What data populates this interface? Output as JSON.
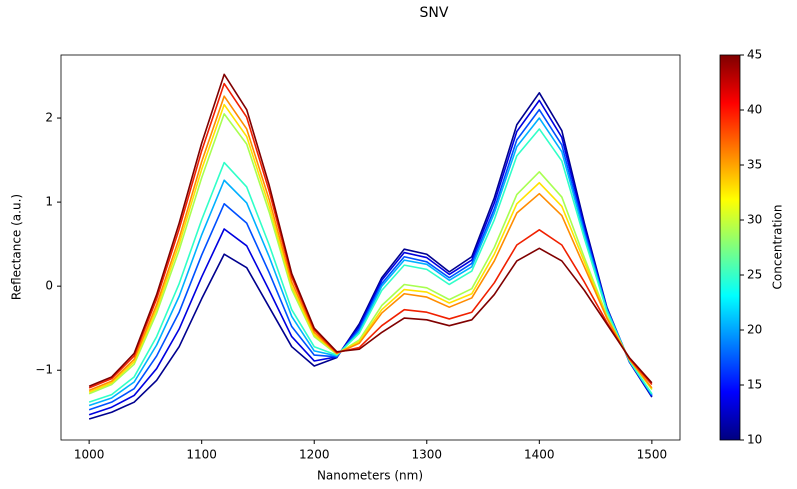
{
  "chart_data": {
    "type": "line",
    "title": "SNV",
    "x_label": "Nanometers (nm)",
    "y_label": "Reflectance (a.u.)",
    "x": [
      1000,
      1020,
      1040,
      1060,
      1080,
      1100,
      1120,
      1140,
      1160,
      1180,
      1200,
      1220,
      1240,
      1260,
      1280,
      1300,
      1320,
      1340,
      1360,
      1380,
      1400,
      1420,
      1440,
      1460,
      1480,
      1500
    ],
    "xlim": [
      975,
      1525
    ],
    "xticks": [
      1000,
      1100,
      1200,
      1300,
      1400,
      1500
    ],
    "ylim": [
      -1.83,
      2.75
    ],
    "yticks": [
      {
        "value": -1,
        "label": "−1"
      },
      0,
      1,
      2
    ],
    "grid": false,
    "series": [
      {
        "color": "#00008f",
        "values": [
          -1.58,
          -1.5,
          -1.38,
          -1.12,
          -0.72,
          -0.15,
          0.38,
          0.22,
          -0.25,
          -0.72,
          -0.95,
          -0.85,
          -0.45,
          0.1,
          0.44,
          0.38,
          0.17,
          0.35,
          1.05,
          1.92,
          2.3,
          1.85,
          0.75,
          -0.25,
          -0.9,
          -1.32
        ]
      },
      {
        "color": "#0000e0",
        "values": [
          -1.53,
          -1.44,
          -1.3,
          -0.98,
          -0.51,
          0.11,
          0.68,
          0.48,
          -0.05,
          -0.6,
          -0.89,
          -0.84,
          -0.48,
          0.07,
          0.4,
          0.34,
          0.14,
          0.31,
          0.99,
          1.84,
          2.21,
          1.77,
          0.71,
          -0.26,
          -0.9,
          -1.31
        ]
      },
      {
        "color": "#0050ff",
        "values": [
          -1.47,
          -1.38,
          -1.22,
          -0.83,
          -0.31,
          0.37,
          0.98,
          0.75,
          0.16,
          -0.48,
          -0.82,
          -0.84,
          -0.51,
          0.03,
          0.35,
          0.29,
          0.1,
          0.27,
          0.92,
          1.74,
          2.1,
          1.68,
          0.66,
          -0.27,
          -0.89,
          -1.3
        ]
      },
      {
        "color": "#00b0ff",
        "values": [
          -1.42,
          -1.33,
          -1.14,
          -0.7,
          -0.12,
          0.61,
          1.26,
          0.99,
          0.35,
          -0.36,
          -0.77,
          -0.83,
          -0.54,
          0.0,
          0.31,
          0.26,
          0.07,
          0.23,
          0.87,
          1.66,
          2.0,
          1.6,
          0.62,
          -0.28,
          -0.89,
          -1.29
        ]
      },
      {
        "color": "#30ffc8",
        "values": [
          -1.38,
          -1.29,
          -1.08,
          -0.6,
          0.03,
          0.79,
          1.47,
          1.18,
          0.49,
          -0.28,
          -0.72,
          -0.82,
          -0.56,
          -0.05,
          0.25,
          0.2,
          0.02,
          0.18,
          0.79,
          1.55,
          1.87,
          1.49,
          0.57,
          -0.3,
          -0.89,
          -1.28
        ]
      },
      {
        "color": "#a8ff50",
        "values": [
          -1.28,
          -1.17,
          -0.93,
          -0.32,
          0.43,
          1.29,
          2.05,
          1.69,
          0.88,
          -0.04,
          -0.6,
          -0.81,
          -0.64,
          -0.23,
          0.02,
          -0.02,
          -0.16,
          -0.03,
          0.46,
          1.09,
          1.36,
          1.06,
          0.34,
          -0.35,
          -0.87,
          -1.23
        ]
      },
      {
        "color": "#ffe200",
        "values": [
          -1.26,
          -1.15,
          -0.9,
          -0.27,
          0.5,
          1.39,
          2.16,
          1.78,
          0.95,
          0.0,
          -0.58,
          -0.8,
          -0.66,
          -0.28,
          -0.04,
          -0.07,
          -0.2,
          -0.09,
          0.38,
          0.98,
          1.23,
          0.95,
          0.29,
          -0.37,
          -0.87,
          -1.22
        ]
      },
      {
        "color": "#ff8c00",
        "values": [
          -1.24,
          -1.13,
          -0.87,
          -0.22,
          0.57,
          1.48,
          2.26,
          1.87,
          1.03,
          0.05,
          -0.55,
          -0.8,
          -0.68,
          -0.32,
          -0.09,
          -0.13,
          -0.25,
          -0.14,
          0.3,
          0.87,
          1.1,
          0.84,
          0.23,
          -0.38,
          -0.87,
          -1.21
        ]
      },
      {
        "color": "#f02000",
        "values": [
          -1.21,
          -1.1,
          -0.83,
          -0.15,
          0.68,
          1.61,
          2.41,
          2.01,
          1.13,
          0.11,
          -0.52,
          -0.79,
          -0.73,
          -0.47,
          -0.28,
          -0.31,
          -0.39,
          -0.31,
          0.04,
          0.49,
          0.67,
          0.49,
          0.05,
          -0.43,
          -0.86,
          -1.17
        ]
      },
      {
        "color": "#800000",
        "values": [
          -1.19,
          -1.08,
          -0.8,
          -0.1,
          0.75,
          1.7,
          2.52,
          2.1,
          1.2,
          0.15,
          -0.5,
          -0.78,
          -0.75,
          -0.55,
          -0.38,
          -0.4,
          -0.47,
          -0.4,
          -0.1,
          0.3,
          0.45,
          0.3,
          -0.05,
          -0.45,
          -0.85,
          -1.15
        ]
      }
    ],
    "colorbar": {
      "label": "Concentration",
      "colormap": "jet",
      "lim": [
        10,
        45
      ],
      "ticks": [
        10,
        15,
        20,
        25,
        30,
        35,
        40,
        45
      ]
    }
  }
}
